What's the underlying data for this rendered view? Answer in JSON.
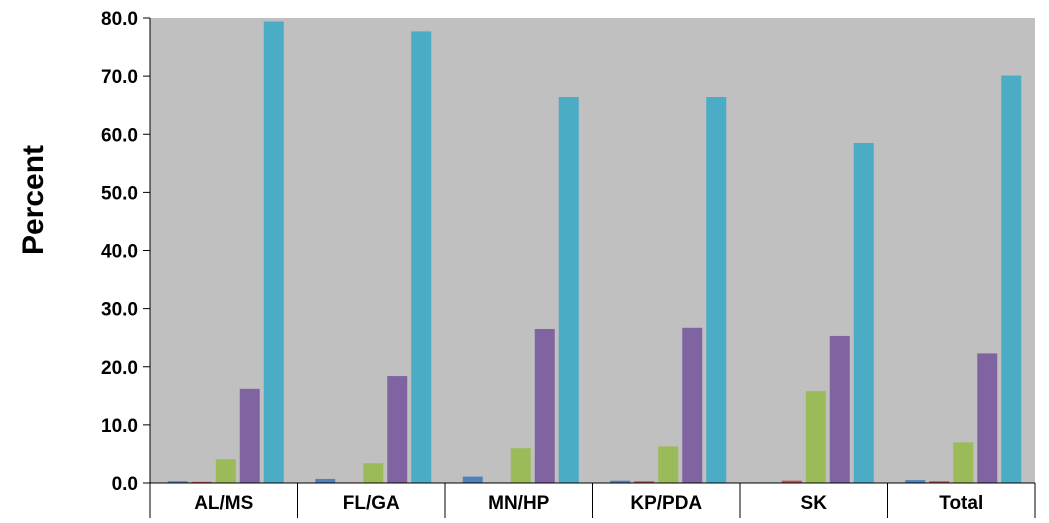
{
  "chart_data": {
    "type": "bar",
    "title": "",
    "xlabel": "",
    "ylabel": "Percent",
    "ylim": [
      0,
      80
    ],
    "yticks": [
      0,
      10,
      20,
      30,
      40,
      50,
      60,
      70,
      80
    ],
    "ytick_labels": [
      "0.0",
      "10.0",
      "20.0",
      "30.0",
      "40.0",
      "50.0",
      "60.0",
      "70.0",
      "80.0"
    ],
    "categories": [
      "AL/MS",
      "FL/GA",
      "MN/HP",
      "KP/PDA",
      "SK",
      "Total"
    ],
    "series": [
      {
        "color": "#4F81BD",
        "values": [
          0.3,
          0.7,
          1.1,
          0.4,
          0.1,
          0.5
        ]
      },
      {
        "color": "#C0504D",
        "values": [
          0.2,
          0.1,
          0.1,
          0.3,
          0.4,
          0.3
        ]
      },
      {
        "color": "#9BBB59",
        "values": [
          4.1,
          3.4,
          6.0,
          6.3,
          15.8,
          7.0
        ]
      },
      {
        "color": "#8064A2",
        "values": [
          16.2,
          18.4,
          26.5,
          26.7,
          25.3,
          22.3
        ]
      },
      {
        "color": "#4BACC6",
        "values": [
          79.4,
          77.7,
          66.4,
          66.4,
          58.5,
          70.1
        ]
      }
    ],
    "plot_background": "#C0C0C0",
    "grid": false,
    "legend": "none"
  }
}
